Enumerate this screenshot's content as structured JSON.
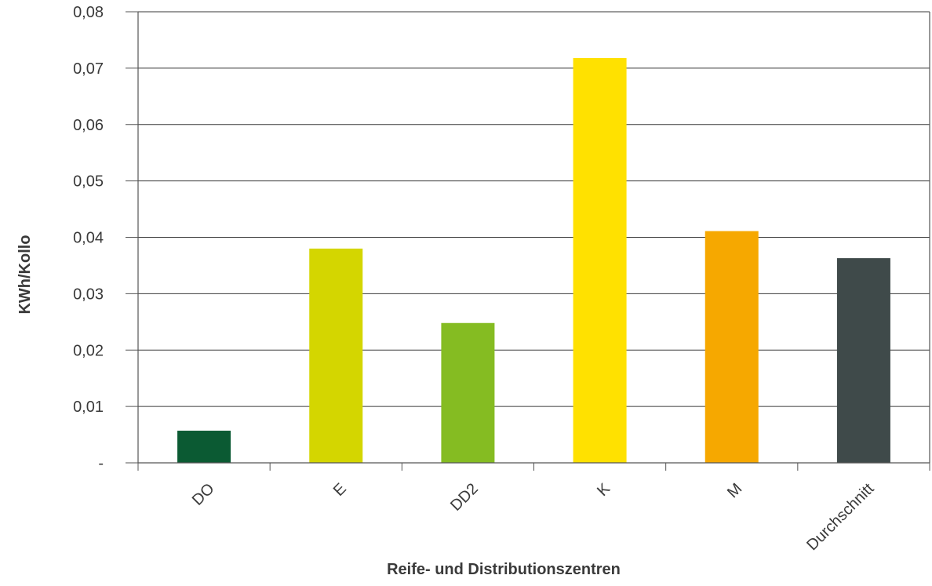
{
  "chart_data": {
    "type": "bar",
    "title": "",
    "xlabel": "Reife- und Distributionszentren",
    "ylabel": "KWh/Kollo",
    "categories": [
      "DO",
      "E",
      "DD2",
      "K",
      "M",
      "Durchschnitt"
    ],
    "values": [
      0.0057,
      0.038,
      0.0248,
      0.0718,
      0.0411,
      0.0363
    ],
    "colors": [
      "#0b5a33",
      "#d4d600",
      "#85bc22",
      "#ffe100",
      "#f6a800",
      "#3f4a4a"
    ],
    "ylim": [
      0,
      0.08
    ],
    "yticks": [
      0,
      0.01,
      0.02,
      0.03,
      0.04,
      0.05,
      0.06,
      0.07,
      0.08
    ],
    "ytick_labels": [
      "-",
      "0,01",
      "0,02",
      "0,03",
      "0,04",
      "0,05",
      "0,06",
      "0,07",
      "0,08"
    ],
    "grid": "horizontal",
    "legend": "none"
  }
}
